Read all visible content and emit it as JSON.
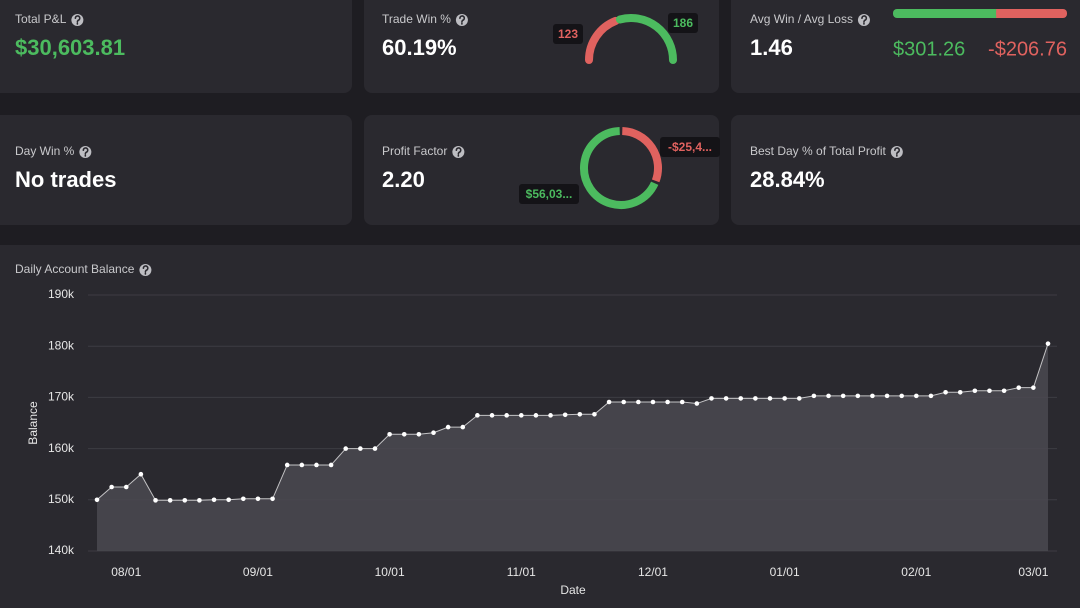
{
  "cards": [
    {
      "label": "Total P&L",
      "value": "$30,603.81"
    },
    {
      "label": "Trade Win %",
      "value": "60.19%",
      "gauge": {
        "losses": 123,
        "wins": 186
      }
    },
    {
      "label": "Avg Win / Avg Loss",
      "value": "1.46",
      "avg_win": {
        "value": 301.26,
        "label": "$301.26"
      },
      "avg_loss": {
        "value": -206.76,
        "label": "-$206.76"
      }
    },
    {
      "label": "Day Win %",
      "value": "No trades"
    },
    {
      "label": "Profit Factor",
      "value": "2.20",
      "donut": {
        "profit": {
          "value": 56035,
          "label": "$56,03..."
        },
        "loss": {
          "value": -25431,
          "label": "-$25,4..."
        }
      }
    },
    {
      "label": "Best Day % of Total Profit",
      "value": "28.84%"
    }
  ],
  "chart_data": {
    "type": "area",
    "title": "Daily Account Balance",
    "x_label": "Date",
    "y_label": "Balance",
    "categories": [
      null,
      null,
      "08/01",
      null,
      null,
      null,
      null,
      null,
      null,
      null,
      null,
      "09/01",
      null,
      null,
      null,
      null,
      null,
      null,
      null,
      null,
      "10/01",
      null,
      null,
      null,
      null,
      null,
      null,
      null,
      null,
      "11/01",
      null,
      null,
      null,
      null,
      null,
      null,
      null,
      null,
      "12/01",
      null,
      null,
      null,
      null,
      null,
      null,
      null,
      null,
      "01/01",
      null,
      null,
      null,
      null,
      null,
      null,
      null,
      null,
      "02/01",
      null,
      null,
      null,
      null,
      null,
      null,
      null,
      "03/01",
      null
    ],
    "values": [
      150000,
      152500,
      152500,
      155000,
      149900,
      149900,
      149900,
      149900,
      150000,
      150000,
      150200,
      150200,
      150200,
      156800,
      156800,
      156800,
      156800,
      160000,
      160000,
      160000,
      162800,
      162800,
      162800,
      163100,
      164200,
      164200,
      166500,
      166500,
      166500,
      166500,
      166500,
      166500,
      166600,
      166700,
      166700,
      169100,
      169100,
      169100,
      169100,
      169100,
      169100,
      168800,
      169800,
      169800,
      169800,
      169800,
      169800,
      169800,
      169800,
      170300,
      170300,
      170300,
      170300,
      170300,
      170300,
      170300,
      170300,
      170300,
      171000,
      171000,
      171300,
      171300,
      171300,
      171900,
      171900,
      180500
    ],
    "color": "#ffffff",
    "fill": "#4a4950",
    "ylim": [
      140000,
      190000
    ],
    "yticks": [
      {
        "value": 140000,
        "label": "140k"
      },
      {
        "value": 150000,
        "label": "150k"
      },
      {
        "value": 160000,
        "label": "160k"
      },
      {
        "value": 170000,
        "label": "170k"
      },
      {
        "value": 180000,
        "label": "180k"
      },
      {
        "value": 190000,
        "label": "190k"
      }
    ],
    "grid": true
  }
}
